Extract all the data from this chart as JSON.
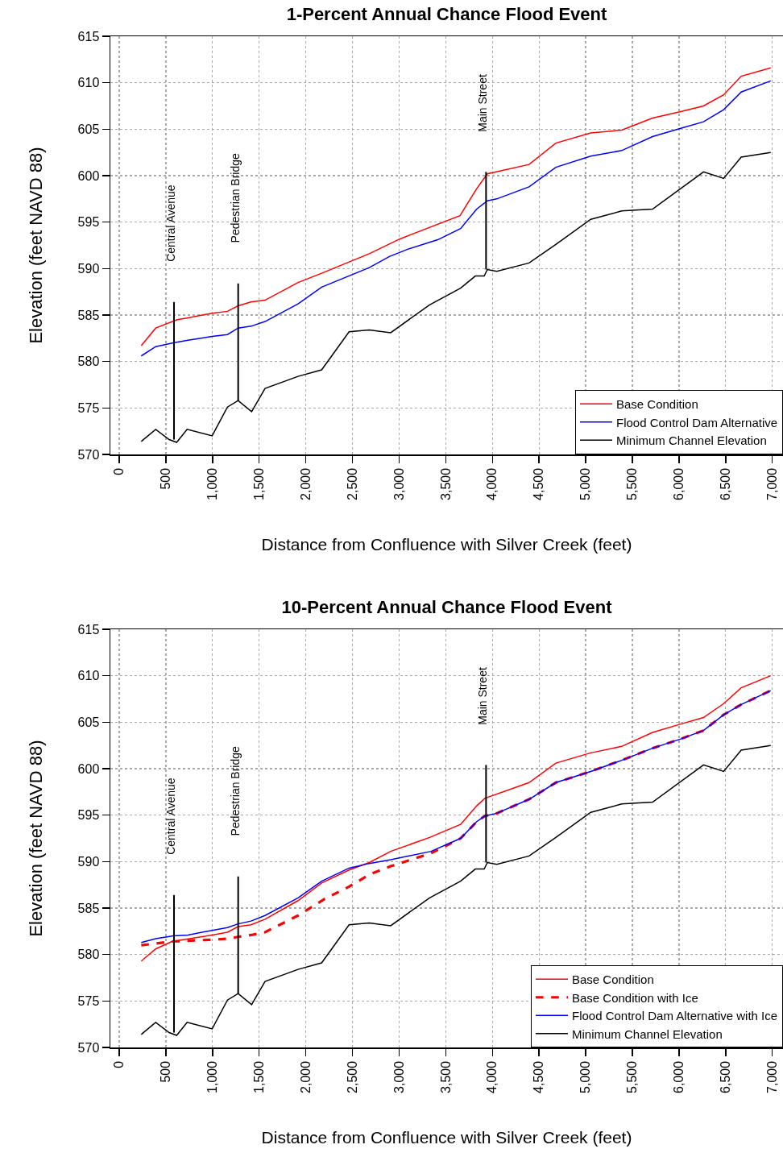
{
  "chart_data": [
    {
      "type": "line",
      "title": "1-Percent Annual Chance Flood Event",
      "xlabel": "Distance from Confluence with Silver Creek (feet)",
      "ylabel": "Elevation (feet NAVD 88)",
      "xlim": [
        -95,
        7115
      ],
      "xticks": [
        {
          "value": 0,
          "label": "0"
        },
        {
          "value": 500,
          "label": "500"
        },
        {
          "value": 1000,
          "label": "1,000"
        },
        {
          "value": 1500,
          "label": "1,500"
        },
        {
          "value": 2000,
          "label": "2,000"
        },
        {
          "value": 2500,
          "label": "2,500"
        },
        {
          "value": 3000,
          "label": "3,000"
        },
        {
          "value": 3500,
          "label": "3,500"
        },
        {
          "value": 4000,
          "label": "4,000"
        },
        {
          "value": 4500,
          "label": "4,500"
        },
        {
          "value": 5000,
          "label": "5,000"
        },
        {
          "value": 5500,
          "label": "5,500"
        },
        {
          "value": 6000,
          "label": "6,000"
        },
        {
          "value": 6500,
          "label": "6,500"
        },
        {
          "value": 7000,
          "label": "7,000"
        }
      ],
      "ylim": [
        570,
        615
      ],
      "yticks": [
        570,
        575,
        580,
        585,
        590,
        595,
        600,
        605,
        610,
        615
      ],
      "grid": true,
      "legend": "bottom right",
      "line_style": "solid",
      "marker": "none",
      "series": [
        {
          "name": "Base Condition",
          "color": "#ff0000",
          "x": [
            236,
            391,
            622,
            737,
            996,
            1160,
            1275,
            1413,
            1563,
            1917,
            2170,
            2680,
            3011,
            3653,
            3832,
            3946,
            4393,
            4680,
            5054,
            5386,
            5717,
            6019,
            6263,
            6479,
            6667,
            6983
          ],
          "values": [
            581.7,
            583.6,
            584.5,
            584.7,
            585.2,
            585.4,
            586.0,
            586.4,
            586.6,
            588.5,
            589.5,
            591.6,
            593.2,
            595.7,
            598.6,
            600.2,
            601.2,
            603.5,
            604.6,
            604.9,
            606.2,
            606.9,
            607.5,
            608.7,
            610.7,
            611.6
          ]
        },
        {
          "name": "Flood Control Dam Alternative",
          "color": "#0000ff",
          "x": [
            236,
            391,
            579,
            737,
            996,
            1160,
            1275,
            1413,
            1563,
            1917,
            2170,
            2680,
            2896,
            3097,
            3414,
            3659,
            3832,
            3946,
            4047,
            4393,
            4680,
            5054,
            5386,
            5717,
            6019,
            6263,
            6479,
            6667,
            6983
          ],
          "values": [
            580.6,
            581.6,
            582.0,
            582.3,
            582.7,
            582.9,
            583.6,
            583.8,
            584.3,
            586.2,
            588.0,
            590.1,
            591.3,
            592.1,
            593.1,
            594.3,
            596.4,
            597.3,
            597.5,
            598.8,
            600.9,
            602.1,
            602.7,
            604.2,
            605.1,
            605.8,
            607.1,
            609.0,
            610.2
          ]
        },
        {
          "name": "Minimum Channel Elevation",
          "color": "#000000",
          "x": [
            236,
            391,
            535,
            616,
            728,
            996,
            1160,
            1275,
            1419,
            1563,
            1917,
            2170,
            2464,
            2680,
            2910,
            3327,
            3659,
            3817,
            3912,
            3946,
            4047,
            4393,
            4680,
            5054,
            5386,
            5717,
            6263,
            6479,
            6667,
            6983
          ],
          "values": [
            571.4,
            572.7,
            571.6,
            571.3,
            572.7,
            572.0,
            575.1,
            575.8,
            574.6,
            577.1,
            578.4,
            579.1,
            583.2,
            583.4,
            583.1,
            586.1,
            587.9,
            589.2,
            589.2,
            589.9,
            589.7,
            590.6,
            592.6,
            595.3,
            596.2,
            596.4,
            600.4,
            599.7,
            602.0,
            602.5
          ]
        },
        {
          "color": "#000000",
          "x": [
            587,
            587,
            null,
            1275,
            1275,
            null,
            3932,
            3932
          ],
          "values": [
            571.6,
            586.4,
            null,
            575.8,
            588.4,
            null,
            589.9,
            600.4
          ]
        }
      ],
      "annotations": [
        "Central Avenue",
        "Pedestrian Bridge",
        "Main Street"
      ]
    },
    {
      "type": "line",
      "title": "10-Percent Annual Chance Flood Event",
      "xlabel": "Distance from Confluence with Silver Creek (feet)",
      "ylabel": "Elevation (feet NAVD 88)",
      "xlim": [
        -95,
        7115
      ],
      "xticks": [
        {
          "value": 0,
          "label": "0"
        },
        {
          "value": 500,
          "label": "500"
        },
        {
          "value": 1000,
          "label": "1,000"
        },
        {
          "value": 1500,
          "label": "1,500"
        },
        {
          "value": 2000,
          "label": "2,000"
        },
        {
          "value": 2500,
          "label": "2,500"
        },
        {
          "value": 3000,
          "label": "3,000"
        },
        {
          "value": 3500,
          "label": "3,500"
        },
        {
          "value": 4000,
          "label": "4,000"
        },
        {
          "value": 4500,
          "label": "4,500"
        },
        {
          "value": 5000,
          "label": "5,000"
        },
        {
          "value": 5500,
          "label": "5,500"
        },
        {
          "value": 6000,
          "label": "6,000"
        },
        {
          "value": 6500,
          "label": "6,500"
        },
        {
          "value": 7000,
          "label": "7,000"
        }
      ],
      "ylim": [
        570,
        615
      ],
      "yticks": [
        570,
        575,
        580,
        585,
        590,
        595,
        600,
        605,
        610,
        615
      ],
      "grid": true,
      "legend": "bottom right",
      "line_style": "solid",
      "marker": "none",
      "series": [
        {
          "name": "Base Condition",
          "color": "#ff0000",
          "x": [
            236,
            391,
            564,
            996,
            1160,
            1275,
            1413,
            1563,
            1917,
            2170,
            2464,
            2680,
            2910,
            3327,
            3659,
            3832,
            3918,
            4393,
            4680,
            5054,
            5386,
            5717,
            6019,
            6263,
            6479,
            6667,
            6983
          ],
          "values": [
            579.3,
            580.6,
            581.4,
            582.1,
            582.4,
            583.0,
            583.2,
            583.8,
            585.8,
            587.7,
            589.1,
            589.9,
            591.1,
            592.6,
            594.0,
            596.0,
            596.8,
            598.5,
            600.6,
            601.7,
            602.4,
            603.9,
            604.8,
            605.5,
            607.0,
            608.7,
            610.0
          ]
        },
        {
          "name": "Base Condition with Ice",
          "color": "#ff0000",
          "line_style": "dashed",
          "x": [
            236,
            564,
            996,
            1160,
            1275,
            1413,
            1563,
            1917,
            2205,
            2464,
            2680,
            2910,
            3342,
            3659,
            3832,
            3918,
            4047,
            4393,
            4680,
            5054,
            5386,
            5717,
            6019,
            6263,
            6479,
            6667,
            6983
          ],
          "values": [
            581.0,
            581.4,
            581.6,
            581.7,
            581.9,
            582.1,
            582.4,
            584.2,
            586.0,
            587.3,
            588.6,
            589.5,
            590.9,
            592.5,
            594.3,
            594.9,
            595.2,
            596.7,
            598.5,
            599.7,
            600.9,
            602.2,
            603.2,
            604.1,
            605.8,
            606.9,
            608.4
          ]
        },
        {
          "name": "Flood Control Dam Alternative with Ice",
          "color": "#0000ff",
          "x": [
            236,
            391,
            579,
            737,
            996,
            1160,
            1275,
            1413,
            1563,
            1917,
            2170,
            2464,
            2680,
            2910,
            3342,
            3659,
            3832,
            3918,
            4047,
            4393,
            4680,
            5054,
            5386,
            5717,
            6019,
            6263,
            6479,
            6667,
            6983
          ],
          "values": [
            581.3,
            581.7,
            582.0,
            582.1,
            582.6,
            582.9,
            583.3,
            583.6,
            584.2,
            586.1,
            587.9,
            589.3,
            589.8,
            590.2,
            591.1,
            592.5,
            594.3,
            594.9,
            595.2,
            596.7,
            598.5,
            599.7,
            600.9,
            602.2,
            603.2,
            604.1,
            605.8,
            606.9,
            608.4
          ]
        },
        {
          "name": "Minimum Channel Elevation",
          "color": "#000000",
          "x": [
            236,
            391,
            535,
            616,
            728,
            996,
            1160,
            1275,
            1419,
            1563,
            1917,
            2170,
            2464,
            2680,
            2910,
            3327,
            3659,
            3817,
            3912,
            3946,
            4047,
            4393,
            4680,
            5054,
            5386,
            5717,
            6263,
            6479,
            6667,
            6983
          ],
          "values": [
            571.4,
            572.7,
            571.6,
            571.3,
            572.7,
            572.0,
            575.1,
            575.8,
            574.6,
            577.1,
            578.4,
            579.1,
            583.2,
            583.4,
            583.1,
            586.1,
            587.9,
            589.2,
            589.2,
            589.9,
            589.7,
            590.6,
            592.6,
            595.3,
            596.2,
            596.4,
            600.4,
            599.7,
            602.0,
            602.5
          ]
        },
        {
          "color": "#000000",
          "x": [
            587,
            587,
            null,
            1275,
            1275,
            null,
            3932,
            3932
          ],
          "values": [
            571.6,
            586.4,
            null,
            575.8,
            588.4,
            null,
            589.9,
            600.4
          ]
        }
      ],
      "annotations": [
        "Central Avenue",
        "Pedestrian Bridge",
        "Main Street"
      ]
    }
  ]
}
